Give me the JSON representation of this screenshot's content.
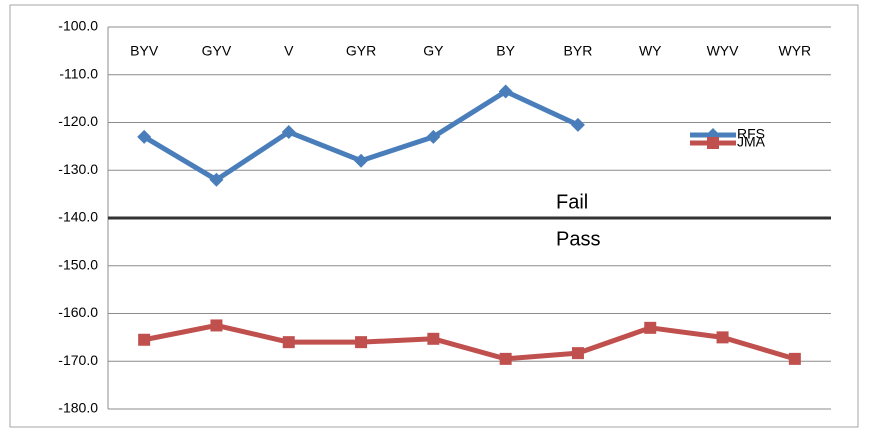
{
  "chart_data": {
    "type": "line",
    "categories": [
      "BYV",
      "GYV",
      "V",
      "GYR",
      "GY",
      "BY",
      "BYR",
      "WY",
      "WYV",
      "WYR"
    ],
    "series": [
      {
        "name": "RFS",
        "color": "#4a7ebb",
        "marker": "diamond",
        "values": [
          -123,
          -132,
          -122,
          -128,
          -123,
          -113.5,
          -120.5,
          null,
          null,
          null
        ]
      },
      {
        "name": "JMA",
        "color": "#c0504d",
        "marker": "square",
        "values": [
          -165.5,
          -162.5,
          -166,
          -166,
          -165.3,
          -169.5,
          -168.3,
          -163,
          -165,
          -169.5
        ]
      }
    ],
    "ylim": [
      -180,
      -100
    ],
    "yticks": [
      {
        "value": -100,
        "label": "-100.0"
      },
      {
        "value": -110,
        "label": "-110.0"
      },
      {
        "value": -120,
        "label": "-120.0"
      },
      {
        "value": -130,
        "label": "-130.0"
      },
      {
        "value": -140,
        "label": "-140.0"
      },
      {
        "value": -150,
        "label": "-150.0"
      },
      {
        "value": -160,
        "label": "-160.0"
      },
      {
        "value": -170,
        "label": "-170.0"
      },
      {
        "value": -180,
        "label": "-180.0"
      }
    ],
    "grid": true,
    "threshold": -140,
    "annotations": [
      {
        "text": "Fail"
      },
      {
        "text": "Pass"
      }
    ],
    "legend": "right"
  }
}
